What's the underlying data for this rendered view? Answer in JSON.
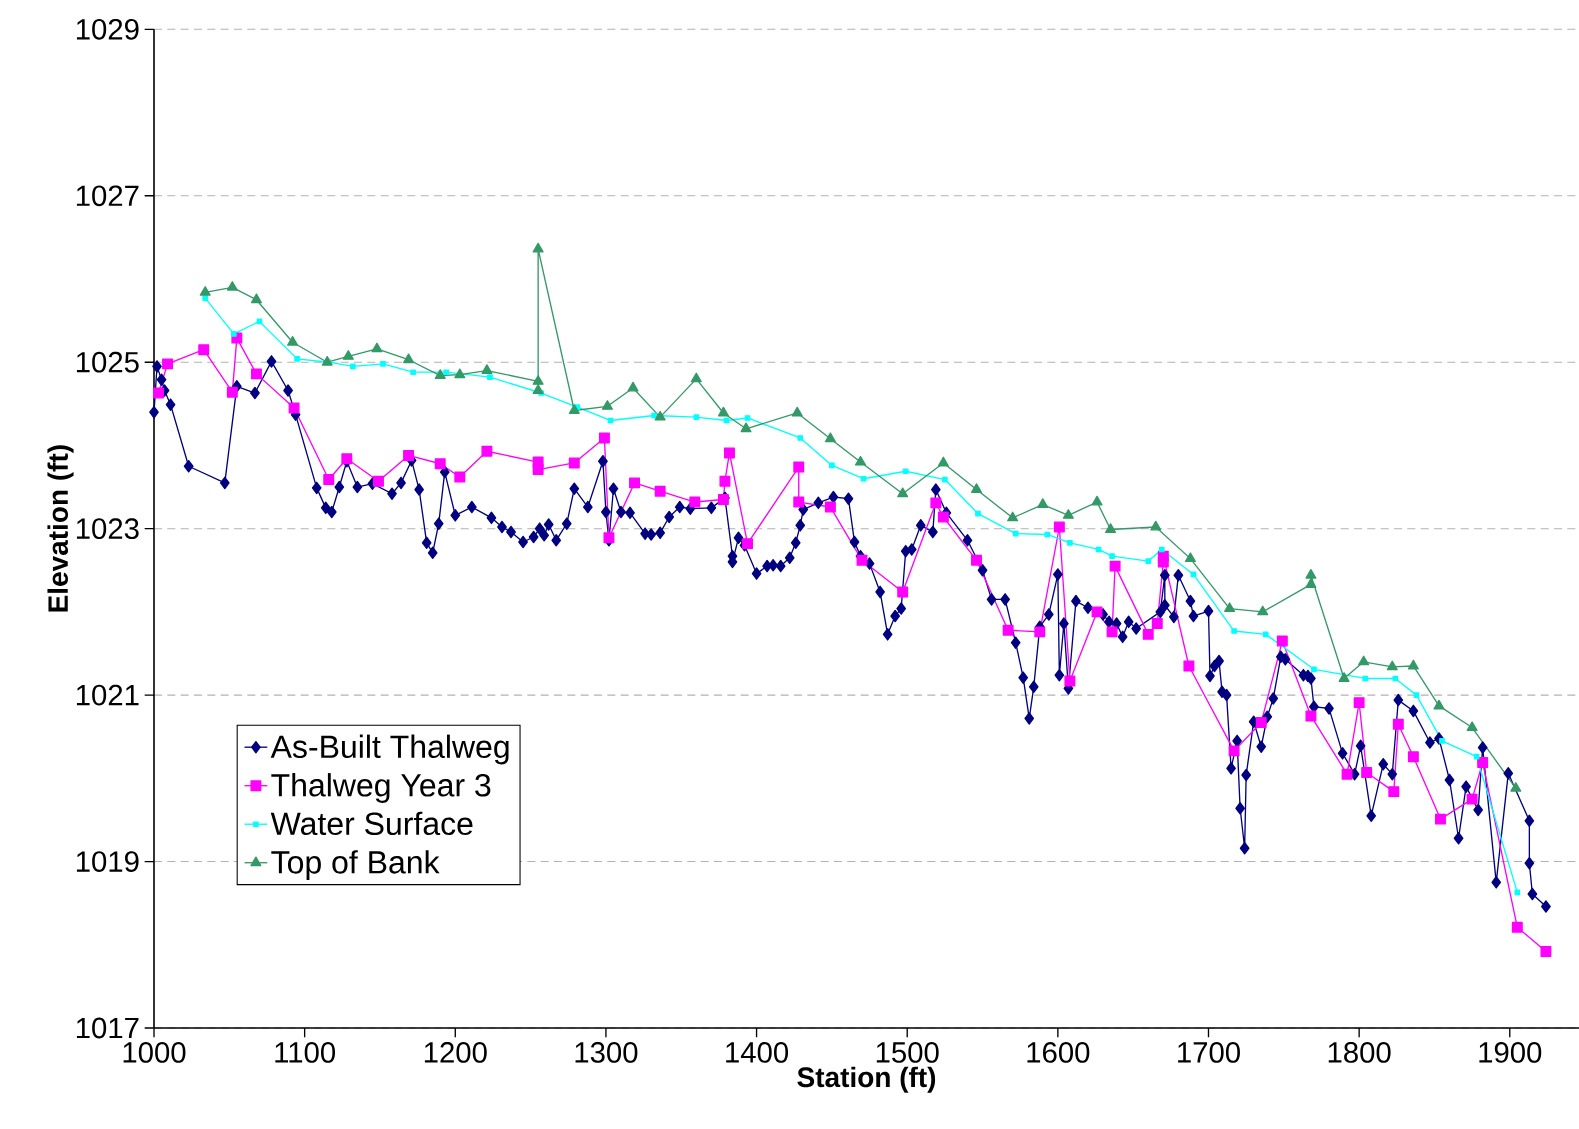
{
  "chart_data": {
    "type": "line",
    "xlabel": "Station (ft)",
    "ylabel": "Elevation (ft)",
    "xlim": [
      1000,
      1946
    ],
    "ylim": [
      1017,
      1029
    ],
    "xticks": [
      1000,
      1100,
      1200,
      1300,
      1400,
      1500,
      1600,
      1700,
      1800,
      1900
    ],
    "yticks": [
      1017,
      1019,
      1021,
      1023,
      1025,
      1027,
      1029
    ],
    "grid": "y",
    "legend": "bottom left",
    "line_style": "solid",
    "series": [
      {
        "name": "As-Built Thalweg",
        "color": "#000080",
        "marker": "diamond",
        "x": [
          1000,
          1002,
          1005,
          1007,
          1011,
          1023,
          1047,
          1055,
          1067,
          1078,
          1089,
          1094,
          1108,
          1114,
          1118,
          1123,
          1128,
          1135,
          1145,
          1158,
          1164,
          1171,
          1176,
          1181,
          1185,
          1189,
          1193,
          1200,
          1211,
          1224,
          1231,
          1237,
          1245,
          1252,
          1256,
          1259,
          1262,
          1267,
          1274,
          1279,
          1288,
          1298,
          1300,
          1302,
          1305,
          1310,
          1316,
          1326,
          1330,
          1336,
          1342,
          1349,
          1356,
          1370,
          1379,
          1384,
          1384,
          1388,
          1392,
          1400,
          1407,
          1411,
          1416,
          1422,
          1426,
          1429,
          1431,
          1441,
          1451,
          1461,
          1465,
          1469,
          1475,
          1482,
          1487,
          1492,
          1496,
          1499,
          1503,
          1509,
          1517,
          1519,
          1526,
          1540,
          1550,
          1556,
          1565,
          1572,
          1577,
          1581,
          1584,
          1588,
          1594,
          1600,
          1601,
          1604,
          1607,
          1612,
          1620,
          1630,
          1634,
          1639,
          1643,
          1647,
          1652,
          1668,
          1671,
          1671,
          1677,
          1680,
          1688,
          1690,
          1700,
          1701,
          1704,
          1707,
          1709,
          1712,
          1715,
          1719,
          1721,
          1724,
          1725,
          1730,
          1735,
          1739,
          1743,
          1748,
          1751,
          1763,
          1766,
          1768,
          1770,
          1780,
          1789,
          1797,
          1801,
          1808,
          1816,
          1822,
          1826,
          1836,
          1847,
          1853,
          1860,
          1866,
          1871,
          1879,
          1882,
          1891,
          1899,
          1913,
          1913,
          1915,
          1924
        ],
        "values": [
          1024.4,
          1024.95,
          1024.79,
          1024.66,
          1024.49,
          1023.75,
          1023.55,
          1024.71,
          1024.63,
          1025.01,
          1024.66,
          1024.37,
          1023.49,
          1023.25,
          1023.2,
          1023.5,
          1023.81,
          1023.5,
          1023.54,
          1023.42,
          1023.55,
          1023.82,
          1023.47,
          1022.83,
          1022.71,
          1023.06,
          1023.68,
          1023.16,
          1023.26,
          1023.13,
          1023.02,
          1022.96,
          1022.84,
          1022.9,
          1023.0,
          1022.92,
          1023.05,
          1022.86,
          1023.06,
          1023.48,
          1023.26,
          1023.81,
          1023.2,
          1022.86,
          1023.48,
          1023.2,
          1023.19,
          1022.94,
          1022.93,
          1022.95,
          1023.14,
          1023.26,
          1023.24,
          1023.25,
          1023.37,
          1022.67,
          1022.6,
          1022.89,
          1022.8,
          1022.46,
          1022.55,
          1022.56,
          1022.55,
          1022.65,
          1022.83,
          1023.04,
          1023.23,
          1023.31,
          1023.38,
          1023.36,
          1022.84,
          1022.67,
          1022.58,
          1022.24,
          1021.73,
          1021.95,
          1022.04,
          1022.73,
          1022.75,
          1023.04,
          1022.96,
          1023.47,
          1023.19,
          1022.86,
          1022.5,
          1022.15,
          1022.15,
          1021.63,
          1021.21,
          1020.72,
          1021.1,
          1021.82,
          1021.97,
          1022.45,
          1021.24,
          1021.86,
          1021.08,
          1022.13,
          1022.05,
          1021.97,
          1021.88,
          1021.86,
          1021.7,
          1021.88,
          1021.8,
          1022.0,
          1022.44,
          1022.08,
          1021.94,
          1022.44,
          1022.13,
          1021.95,
          1022.01,
          1021.23,
          1021.35,
          1021.41,
          1021.04,
          1021.0,
          1020.12,
          1020.45,
          1019.64,
          1019.16,
          1020.04,
          1020.68,
          1020.38,
          1020.74,
          1020.96,
          1021.46,
          1021.43,
          1021.24,
          1021.23,
          1021.2,
          1020.86,
          1020.84,
          1020.3,
          1020.05,
          1020.39,
          1019.55,
          1020.17,
          1020.05,
          1020.94,
          1020.81,
          1020.43,
          1020.48,
          1019.98,
          1019.28,
          1019.9,
          1019.62,
          1020.37,
          1018.75,
          1020.06,
          1019.49,
          1018.98,
          1018.61,
          1018.46
        ]
      },
      {
        "name": "Thalweg Year 3",
        "color": "#ff00ff",
        "marker": "square",
        "x": [
          1003,
          1009,
          1033,
          1052,
          1055,
          1068,
          1093,
          1116,
          1128,
          1149,
          1169,
          1190,
          1203,
          1221,
          1255,
          1255,
          1279,
          1299,
          1302,
          1319,
          1336,
          1359,
          1378,
          1379,
          1382,
          1394,
          1428,
          1428,
          1449,
          1470,
          1497,
          1519,
          1524,
          1546,
          1567,
          1588,
          1601,
          1608,
          1626,
          1636,
          1638,
          1660,
          1666,
          1670,
          1670,
          1687,
          1717,
          1735,
          1749,
          1768,
          1792,
          1800,
          1805,
          1823,
          1826,
          1836,
          1854,
          1875,
          1882,
          1905,
          1924
        ],
        "values": [
          1024.63,
          1024.98,
          1025.15,
          1024.64,
          1025.29,
          1024.86,
          1024.45,
          1023.59,
          1023.84,
          1023.57,
          1023.88,
          1023.78,
          1023.62,
          1023.93,
          1023.8,
          1023.71,
          1023.79,
          1024.09,
          1022.89,
          1023.55,
          1023.45,
          1023.32,
          1023.35,
          1023.57,
          1023.91,
          1022.82,
          1023.74,
          1023.32,
          1023.26,
          1022.62,
          1022.24,
          1023.31,
          1023.14,
          1022.62,
          1021.78,
          1021.76,
          1023.02,
          1021.17,
          1022.0,
          1021.76,
          1022.55,
          1021.73,
          1021.86,
          1022.6,
          1022.67,
          1021.35,
          1020.33,
          1020.67,
          1021.65,
          1020.75,
          1020.05,
          1020.91,
          1020.07,
          1019.84,
          1020.65,
          1020.26,
          1019.51,
          1019.75,
          1020.19,
          1018.21,
          1017.92
        ]
      },
      {
        "name": "Water Surface",
        "color": "#00ffff",
        "marker": "square",
        "x": [
          1034,
          1053,
          1070,
          1095,
          1116,
          1132,
          1152,
          1172,
          1194,
          1223,
          1257,
          1281,
          1303,
          1332,
          1360,
          1380,
          1394,
          1429,
          1450,
          1471,
          1499,
          1525,
          1547,
          1572,
          1593,
          1608,
          1627,
          1636,
          1660,
          1669,
          1690,
          1717,
          1738,
          1770,
          1804,
          1824,
          1838,
          1855,
          1878,
          1905
        ],
        "values": [
          1025.77,
          1025.34,
          1025.49,
          1025.04,
          1025.0,
          1024.95,
          1024.98,
          1024.88,
          1024.88,
          1024.82,
          1024.63,
          1024.46,
          1024.3,
          1024.36,
          1024.34,
          1024.3,
          1024.33,
          1024.09,
          1023.76,
          1023.6,
          1023.69,
          1023.59,
          1023.18,
          1022.94,
          1022.93,
          1022.83,
          1022.75,
          1022.67,
          1022.61,
          1022.75,
          1022.45,
          1021.77,
          1021.73,
          1021.31,
          1021.2,
          1021.2,
          1021.0,
          1020.45,
          1020.26,
          1018.63
        ]
      },
      {
        "name": "Top of Bank",
        "color": "#339966",
        "marker": "triangle",
        "x": [
          1034,
          1052,
          1068,
          1092,
          1115,
          1129,
          1148,
          1169,
          1190,
          1203,
          1221,
          1255,
          1255,
          1255,
          1279,
          1301,
          1318,
          1336,
          1360,
          1378,
          1393,
          1427,
          1449,
          1469,
          1497,
          1524,
          1546,
          1570,
          1590,
          1607,
          1626,
          1635,
          1665,
          1688,
          1714,
          1736,
          1768,
          1768,
          1790,
          1803,
          1822,
          1836,
          1853,
          1875,
          1904
        ],
        "values": [
          1025.84,
          1025.9,
          1025.75,
          1025.24,
          1025.0,
          1025.07,
          1025.16,
          1025.03,
          1024.84,
          1024.85,
          1024.9,
          1024.77,
          1024.66,
          1026.36,
          1024.42,
          1024.47,
          1024.69,
          1024.34,
          1024.8,
          1024.39,
          1024.2,
          1024.39,
          1024.08,
          1023.8,
          1023.42,
          1023.79,
          1023.47,
          1023.13,
          1023.29,
          1023.16,
          1023.32,
          1022.99,
          1023.02,
          1022.64,
          1022.04,
          1022.0,
          1022.33,
          1022.44,
          1021.2,
          1021.4,
          1021.34,
          1021.35,
          1020.87,
          1020.61,
          1019.88
        ]
      }
    ]
  }
}
